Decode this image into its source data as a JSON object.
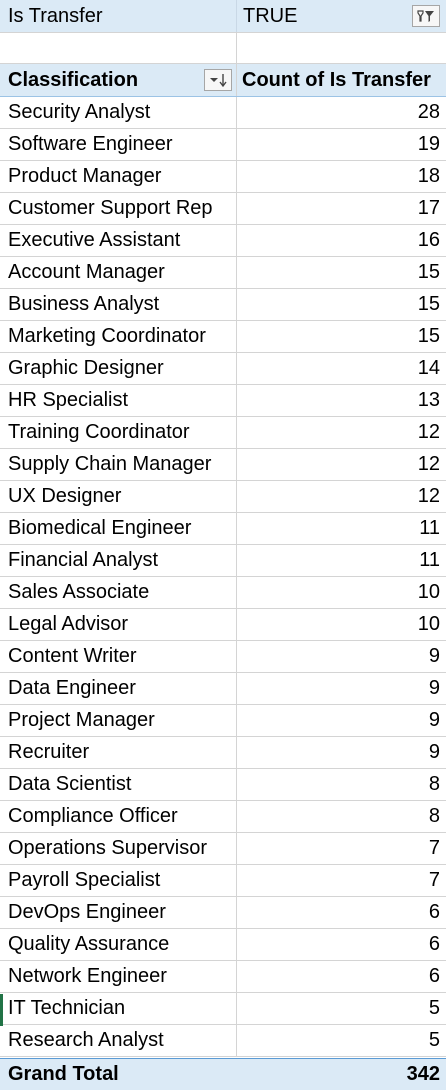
{
  "filter": {
    "field": "Is Transfer",
    "value": "TRUE"
  },
  "header": {
    "col1": "Classification",
    "col2": "Count of Is Transfer"
  },
  "rows": [
    {
      "label": "Security Analyst",
      "count": "28"
    },
    {
      "label": "Software Engineer",
      "count": "19"
    },
    {
      "label": "Product Manager",
      "count": "18"
    },
    {
      "label": "Customer Support Rep",
      "count": "17"
    },
    {
      "label": "Executive Assistant",
      "count": "16"
    },
    {
      "label": "Account Manager",
      "count": "15"
    },
    {
      "label": "Business Analyst",
      "count": "15"
    },
    {
      "label": "Marketing Coordinator",
      "count": "15"
    },
    {
      "label": "Graphic Designer",
      "count": "14"
    },
    {
      "label": "HR Specialist",
      "count": "13"
    },
    {
      "label": "Training Coordinator",
      "count": "12"
    },
    {
      "label": "Supply Chain Manager",
      "count": "12"
    },
    {
      "label": "UX Designer",
      "count": "12"
    },
    {
      "label": "Biomedical Engineer",
      "count": "11"
    },
    {
      "label": "Financial Analyst",
      "count": "11"
    },
    {
      "label": "Sales Associate",
      "count": "10"
    },
    {
      "label": "Legal Advisor",
      "count": "10"
    },
    {
      "label": "Content Writer",
      "count": "9"
    },
    {
      "label": "Data Engineer",
      "count": "9"
    },
    {
      "label": "Project Manager",
      "count": "9"
    },
    {
      "label": "Recruiter",
      "count": "9"
    },
    {
      "label": "Data Scientist",
      "count": "8"
    },
    {
      "label": "Compliance Officer",
      "count": "8"
    },
    {
      "label": "Operations Supervisor",
      "count": "7"
    },
    {
      "label": "Payroll Specialist",
      "count": "7"
    },
    {
      "label": "DevOps Engineer",
      "count": "6"
    },
    {
      "label": "Quality Assurance",
      "count": "6"
    },
    {
      "label": "Network Engineer",
      "count": "6"
    },
    {
      "label": "IT Technician",
      "count": "5"
    },
    {
      "label": "Research Analyst",
      "count": "5"
    }
  ],
  "total": {
    "label": "Grand Total",
    "count": "342"
  },
  "icons": {
    "filter_button": "filter-funnel-icon",
    "sort_button": "sort-descending-icon"
  },
  "colors": {
    "header_fill": "#dbeaf6",
    "total_border": "#5b9bd5"
  }
}
